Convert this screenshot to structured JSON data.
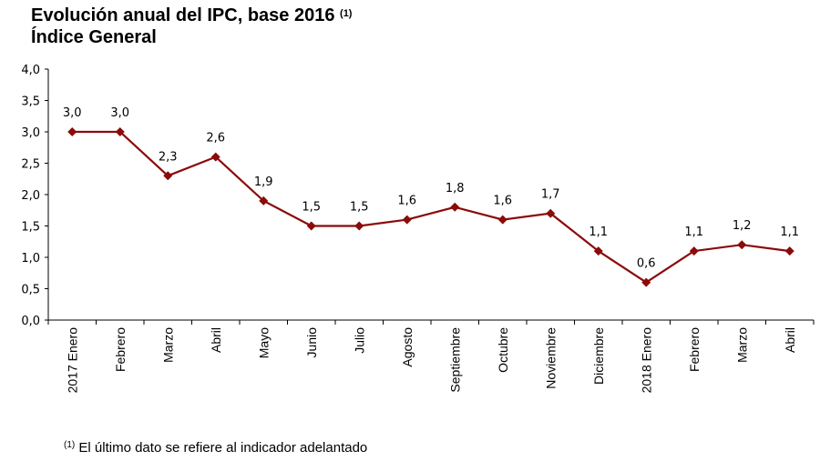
{
  "title": "Evolución anual del IPC, base 2016",
  "title_note_ref": "(1)",
  "subtitle": "Índice General",
  "footnote_ref": "(1)",
  "footnote": "El último dato se refiere al indicador adelantado",
  "chart_data": {
    "type": "line",
    "title": "Evolución anual del IPC, base 2016",
    "subtitle": "Índice General",
    "categories": [
      "2017 Enero",
      "Febrero",
      "Marzo",
      "Abril",
      "Mayo",
      "Junio",
      "Julio",
      "Agosto",
      "Septiembre",
      "Octubre",
      "Noviembre",
      "Diciembre",
      "2018 Enero",
      "Febrero",
      "Marzo",
      "Abril"
    ],
    "values": [
      3.0,
      3.0,
      2.3,
      2.6,
      1.9,
      1.5,
      1.5,
      1.6,
      1.8,
      1.6,
      1.7,
      1.1,
      0.6,
      1.1,
      1.2,
      1.1
    ],
    "data_labels": [
      "3,0",
      "3,0",
      "2,3",
      "2,6",
      "1,9",
      "1,5",
      "1,5",
      "1,6",
      "1,8",
      "1,6",
      "1,7",
      "1,1",
      "0,6",
      "1,1",
      "1,2",
      "1,1"
    ],
    "ylim": [
      0,
      4.0
    ],
    "yticks": [
      "0,0",
      "0,5",
      "1,0",
      "1,5",
      "2,0",
      "2,5",
      "3,0",
      "3,5",
      "4,0"
    ],
    "grid": false,
    "marker": "diamond",
    "color": "#8B0A0A"
  }
}
